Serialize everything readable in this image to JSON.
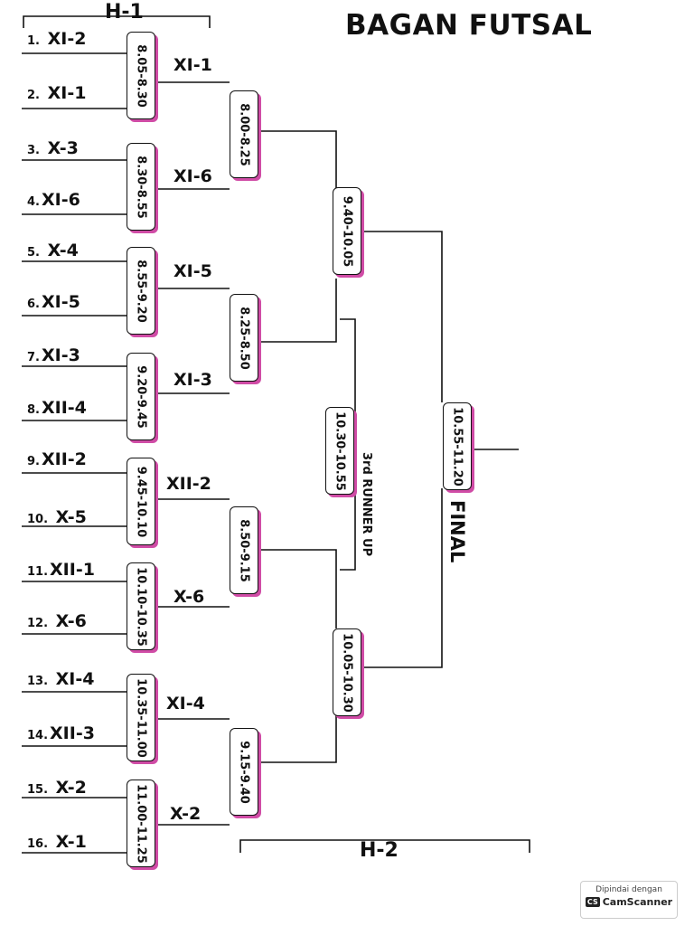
{
  "title": "BAGAN FUTSAL",
  "day1_label": "H-1",
  "day2_label": "H-2",
  "third_place_label": "3rd RUNNER UP",
  "final_label": "FINAL",
  "teams": [
    {
      "num": "1.",
      "name": "XI-2"
    },
    {
      "num": "2.",
      "name": "XI-1"
    },
    {
      "num": "3.",
      "name": "X-3"
    },
    {
      "num": "4.",
      "name": "XI-6"
    },
    {
      "num": "5.",
      "name": "X-4"
    },
    {
      "num": "6.",
      "name": "XI-5"
    },
    {
      "num": "7.",
      "name": "XI-3"
    },
    {
      "num": "8.",
      "name": "XII-4"
    },
    {
      "num": "9.",
      "name": "XII-2"
    },
    {
      "num": "10.",
      "name": "X-5"
    },
    {
      "num": "11.",
      "name": "XII-1"
    },
    {
      "num": "12.",
      "name": "X-6"
    },
    {
      "num": "13.",
      "name": "XI-4"
    },
    {
      "num": "14.",
      "name": "XII-3"
    },
    {
      "num": "15.",
      "name": "X-2"
    },
    {
      "num": "16.",
      "name": "X-1"
    }
  ],
  "round1_times": [
    "8.05-8.30",
    "8.30-8.55",
    "8.55-9.20",
    "9.20-9.45",
    "9.45-10.10",
    "10.10-10.35",
    "10.35-11.00",
    "11.00-11.25"
  ],
  "round1_winners": [
    "XI-1",
    "XI-6",
    "XI-5",
    "XI-3",
    "XII-2",
    "X-6",
    "XI-4",
    "X-2"
  ],
  "round2_times": [
    "8.00-8.25",
    "8.25-8.50",
    "8.50-9.15",
    "9.15-9.40"
  ],
  "semifinal_times": [
    "9.40-10.05",
    "10.05-10.30"
  ],
  "third_place_time": "10.30-10.55",
  "final_time": "10.55-11.20",
  "badge": {
    "line1": "Dipindai dengan",
    "logo": "CS",
    "line2": "CamScanner"
  },
  "colors": {
    "line": "#111111",
    "accent": "#d04ca6"
  }
}
